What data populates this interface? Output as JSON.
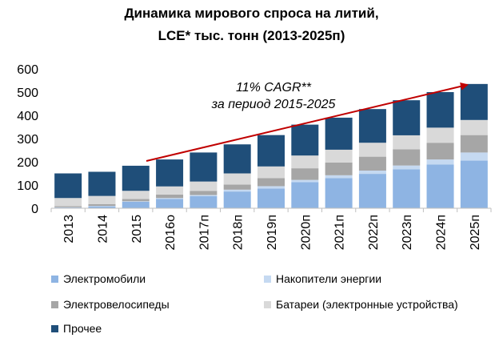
{
  "chart_data": {
    "type": "bar",
    "stacked": true,
    "title_line1": "Динамика мирового спроса на литий,",
    "title_line2": "LCE* тыс. тонн (2013-2025п)",
    "categories": [
      "2013",
      "2014",
      "2015",
      "2016о",
      "2017п",
      "2018п",
      "2019п",
      "2020п",
      "2021п",
      "2022п",
      "2023п",
      "2024п",
      "2025п"
    ],
    "ylim": [
      0,
      600
    ],
    "yticks": [
      0,
      100,
      200,
      300,
      400,
      500,
      600
    ],
    "grid": false,
    "legend_position": "bottom",
    "series": [
      {
        "name": "Электромобили",
        "color": "#8eb4e3",
        "values": [
          3,
          8,
          28,
          40,
          52,
          72,
          85,
          112,
          130,
          148,
          168,
          188,
          205
        ]
      },
      {
        "name": "Накопители энергии",
        "color": "#c5d9f1",
        "values": [
          1,
          2,
          2,
          4,
          5,
          8,
          10,
          10,
          12,
          14,
          16,
          22,
          35
        ]
      },
      {
        "name": "Электровелосипеды",
        "color": "#a6a6a6",
        "values": [
          5,
          8,
          10,
          15,
          18,
          22,
          35,
          50,
          55,
          60,
          70,
          72,
          75
        ]
      },
      {
        "name": "Батареи (электронные устройства)",
        "color": "#d9d9d9",
        "values": [
          35,
          35,
          35,
          35,
          40,
          48,
          50,
          55,
          55,
          60,
          60,
          65,
          65
        ]
      },
      {
        "name": "Прочее",
        "color": "#1f4e79",
        "values": [
          106,
          104,
          108,
          116,
          125,
          125,
          135,
          133,
          138,
          145,
          151,
          153,
          155
        ]
      }
    ],
    "annotation": {
      "line1": "11% CAGR**",
      "line2": "за период 2015-2025",
      "arrow_color": "#c00000"
    }
  }
}
